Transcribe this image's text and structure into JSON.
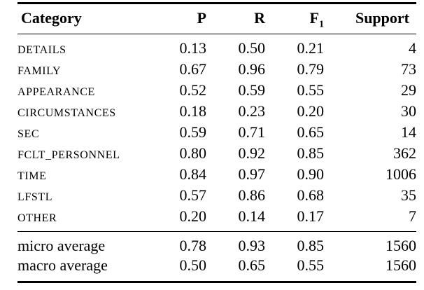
{
  "colors": {
    "text": "#000000",
    "background": "#ffffff",
    "rule": "#000000"
  },
  "table": {
    "columns": [
      {
        "label": "Category"
      },
      {
        "label": "P"
      },
      {
        "label": "R"
      },
      {
        "label": "F",
        "sub": "1"
      },
      {
        "label": "Support"
      }
    ],
    "rows": [
      [
        "DETAILS",
        "0.13",
        "0.50",
        "0.21",
        "4"
      ],
      [
        "FAMILY",
        "0.67",
        "0.96",
        "0.79",
        "73"
      ],
      [
        "APPEARANCE",
        "0.52",
        "0.59",
        "0.55",
        "29"
      ],
      [
        "CIRCUMSTANCES",
        "0.18",
        "0.23",
        "0.20",
        "30"
      ],
      [
        "SEC",
        "0.59",
        "0.71",
        "0.65",
        "14"
      ],
      [
        "FCLT_PERSONNEL",
        "0.80",
        "0.92",
        "0.85",
        "362"
      ],
      [
        "TIME",
        "0.84",
        "0.97",
        "0.90",
        "1006"
      ],
      [
        "LFSTL",
        "0.57",
        "0.86",
        "0.68",
        "35"
      ],
      [
        "OTHER",
        "0.20",
        "0.14",
        "0.17",
        "7"
      ]
    ],
    "averages": [
      [
        "micro average",
        "0.78",
        "0.93",
        "0.85",
        "1560"
      ],
      [
        "macro average",
        "0.50",
        "0.65",
        "0.55",
        "1560"
      ]
    ]
  }
}
